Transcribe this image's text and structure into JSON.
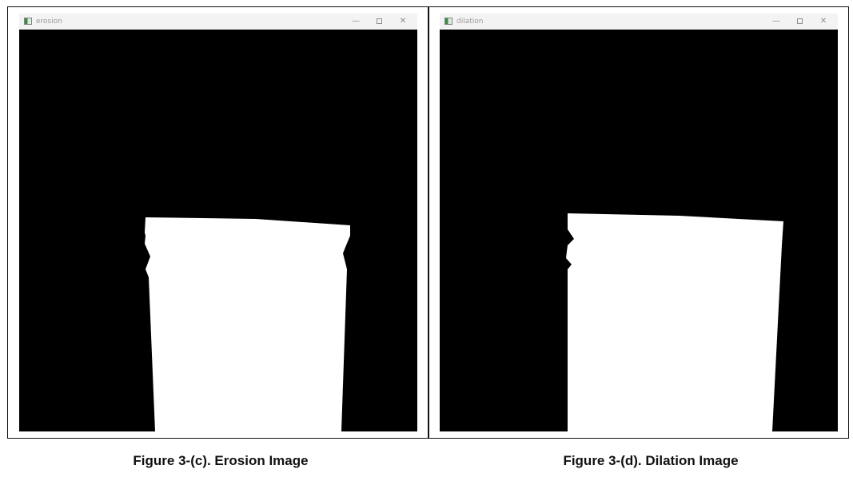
{
  "windows": [
    {
      "title": "erosion",
      "caption": "Figure 3-(c). Erosion Image"
    },
    {
      "title": "dilation",
      "caption": "Figure 3-(d). Dilation Image"
    }
  ],
  "icons": {
    "app": "app-window-icon",
    "minimize": "minimize-icon",
    "maximize": "maximize-icon",
    "close": "close-icon"
  },
  "colors": {
    "background": "#000000",
    "foreground": "#ffffff",
    "titlebar": "#f3f3f3"
  }
}
